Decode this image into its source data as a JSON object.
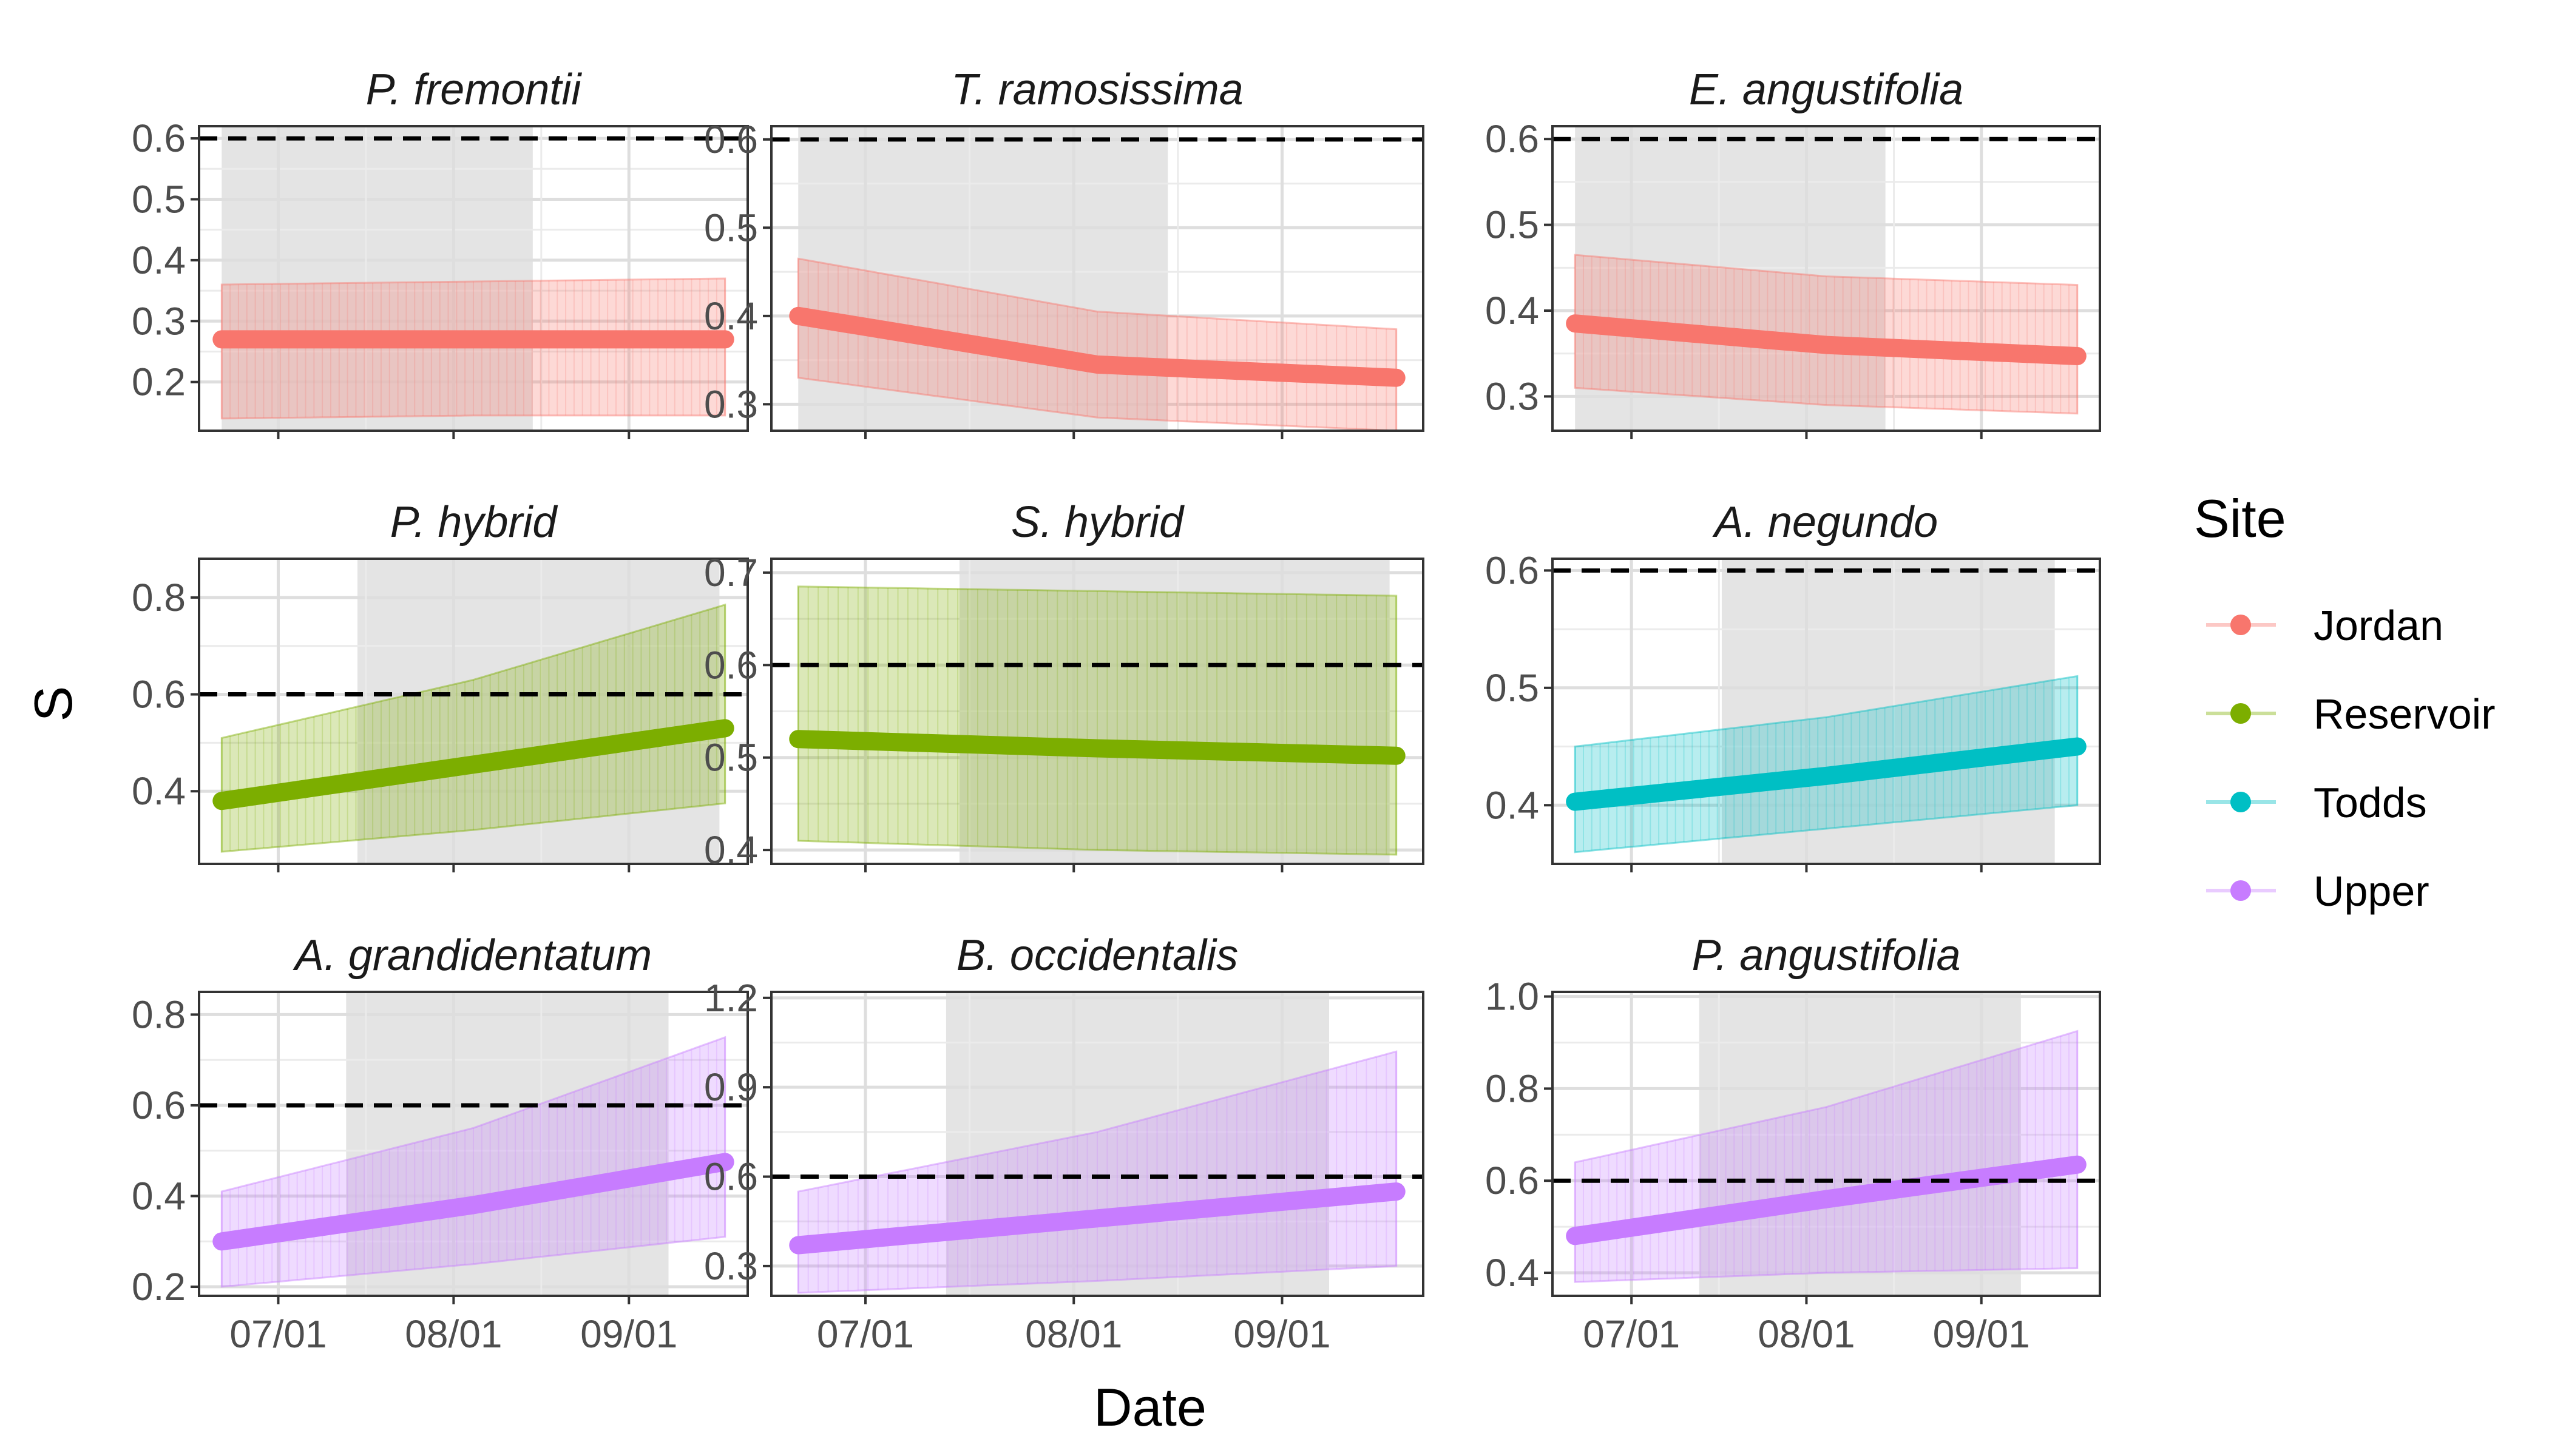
{
  "chart_data": {
    "type": "line",
    "xlabel": "Date",
    "ylabel": "S",
    "x_ticks": [
      "07/01",
      "08/01",
      "09/01"
    ],
    "x_domain": [
      "06/17",
      "09/22"
    ],
    "threshold": 0.6,
    "legend": {
      "title": "Site",
      "position": "right",
      "items": [
        {
          "name": "Jordan",
          "color": "#F8766D"
        },
        {
          "name": "Reservoir",
          "color": "#7CAE00"
        },
        {
          "name": "Todds",
          "color": "#00BFC4"
        },
        {
          "name": "Upper",
          "color": "#C77CFF"
        }
      ]
    },
    "panels": [
      {
        "title": "P. fremontii",
        "site": "Jordan",
        "ylim": [
          0.12,
          0.62
        ],
        "yticks": [
          "0.6",
          "0.5",
          "0.4",
          "0.3",
          "0.2"
        ],
        "shade": [
          "06/21",
          "08/15"
        ],
        "start": "06/21",
        "end": "09/18",
        "mean": [
          0.27,
          0.27,
          0.27
        ],
        "lower": [
          0.14,
          0.145,
          0.145
        ],
        "upper": [
          0.36,
          0.365,
          0.37
        ]
      },
      {
        "title": "T. ramosissima",
        "site": "Jordan",
        "ylim": [
          0.27,
          0.615
        ],
        "yticks": [
          "0.6",
          "0.5",
          "0.4",
          "0.3"
        ],
        "shade": [
          "06/21",
          "08/15"
        ],
        "start": "06/21",
        "end": "09/18",
        "mean": [
          0.4,
          0.345,
          0.33
        ],
        "lower": [
          0.33,
          0.285,
          0.27
        ],
        "upper": [
          0.465,
          0.405,
          0.385
        ]
      },
      {
        "title": "E. angustifolia",
        "site": "Jordan",
        "ylim": [
          0.26,
          0.615
        ],
        "yticks": [
          "0.6",
          "0.5",
          "0.4",
          "0.3"
        ],
        "shade": [
          "06/21",
          "08/15"
        ],
        "start": "06/21",
        "end": "09/18",
        "mean": [
          0.385,
          0.36,
          0.347
        ],
        "lower": [
          0.31,
          0.29,
          0.28
        ],
        "upper": [
          0.465,
          0.44,
          0.43
        ]
      },
      {
        "title": "P. hybrid",
        "site": "Reservoir",
        "ylim": [
          0.25,
          0.88
        ],
        "yticks": [
          "0.8",
          "0.6",
          "0.4"
        ],
        "shade": [
          "07/15",
          "09/17"
        ],
        "start": "06/21",
        "end": "09/18",
        "mean": [
          0.38,
          0.455,
          0.53
        ],
        "lower": [
          0.275,
          0.32,
          0.375
        ],
        "upper": [
          0.51,
          0.63,
          0.785
        ]
      },
      {
        "title": "S. hybrid",
        "site": "Reservoir",
        "ylim": [
          0.385,
          0.715
        ],
        "yticks": [
          "0.7",
          "0.6",
          "0.5",
          "0.4"
        ],
        "shade": [
          "07/15",
          "09/17"
        ],
        "start": "06/21",
        "end": "09/18",
        "mean": [
          0.52,
          0.51,
          0.502
        ],
        "lower": [
          0.41,
          0.4,
          0.395
        ],
        "upper": [
          0.685,
          0.68,
          0.675
        ]
      },
      {
        "title": "A. negundo",
        "site": "Todds",
        "ylim": [
          0.35,
          0.61
        ],
        "yticks": [
          "0.6",
          "0.5",
          "0.4"
        ],
        "shade": [
          "07/17",
          "09/14"
        ],
        "start": "06/21",
        "end": "09/18",
        "mean": [
          0.403,
          0.425,
          0.45
        ],
        "lower": [
          0.36,
          0.38,
          0.4
        ],
        "upper": [
          0.45,
          0.475,
          0.51
        ]
      },
      {
        "title": "A. grandidentatum",
        "site": "Upper",
        "ylim": [
          0.18,
          0.85
        ],
        "yticks": [
          "0.8",
          "0.6",
          "0.4",
          "0.2"
        ],
        "shade": [
          "07/13",
          "09/08"
        ],
        "start": "06/21",
        "end": "09/18",
        "mean": [
          0.3,
          0.38,
          0.475
        ],
        "lower": [
          0.2,
          0.25,
          0.31
        ],
        "upper": [
          0.41,
          0.55,
          0.75
        ]
      },
      {
        "title": "B. occidentalis",
        "site": "Upper",
        "ylim": [
          0.2,
          1.22
        ],
        "yticks": [
          "1.2",
          "0.9",
          "0.6",
          "0.3"
        ],
        "shade": [
          "07/13",
          "09/08"
        ],
        "start": "06/21",
        "end": "09/18",
        "mean": [
          0.37,
          0.46,
          0.55
        ],
        "lower": [
          0.21,
          0.25,
          0.3
        ],
        "upper": [
          0.55,
          0.75,
          1.02
        ]
      },
      {
        "title": "P. angustifolia",
        "site": "Upper",
        "ylim": [
          0.35,
          1.01
        ],
        "yticks": [
          "1.0",
          "0.8",
          "0.6",
          "0.4"
        ],
        "shade": [
          "07/13",
          "09/08"
        ],
        "start": "06/21",
        "end": "09/18",
        "mean": [
          0.48,
          0.56,
          0.635
        ],
        "lower": [
          0.38,
          0.4,
          0.41
        ],
        "upper": [
          0.64,
          0.76,
          0.925
        ]
      }
    ]
  }
}
